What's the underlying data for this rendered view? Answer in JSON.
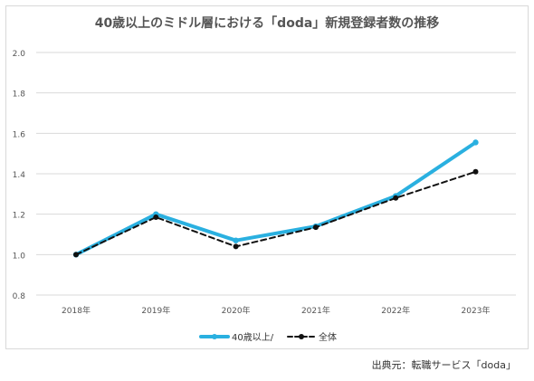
{
  "chart_data": {
    "type": "line",
    "title": "40歳以上のミドル層における「doda」新規登録者数の推移",
    "categories": [
      "2018年",
      "2019年",
      "2020年",
      "2021年",
      "2022年",
      "2023年"
    ],
    "ylim": [
      0.8,
      2.0
    ],
    "yticks": [
      "0.8",
      "1.0",
      "1.2",
      "1.4",
      "1.6",
      "1.8",
      "2.0"
    ],
    "grid": true,
    "legend_position": "bottom",
    "series": [
      {
        "name": "40歳以上/",
        "values": [
          1.0,
          1.2,
          1.07,
          1.14,
          1.29,
          1.555
        ],
        "color": "#2ab0e0",
        "style": "solid"
      },
      {
        "name": "全体",
        "values": [
          1.0,
          1.185,
          1.04,
          1.135,
          1.28,
          1.41
        ],
        "color": "#111111",
        "style": "dashed"
      }
    ]
  },
  "source_note": "出典元：転職サービス「doda」"
}
